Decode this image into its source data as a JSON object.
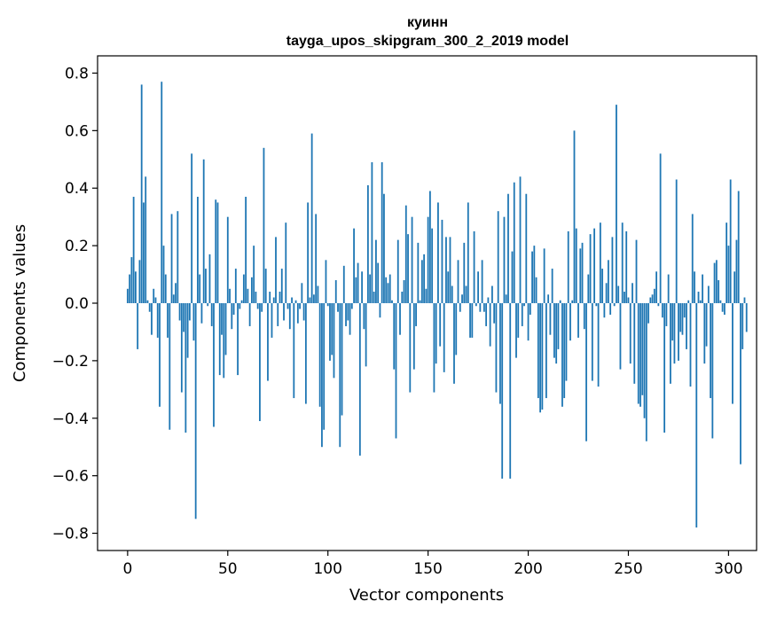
{
  "chart_data": {
    "type": "bar",
    "title_line1": "куинн",
    "title_line2": "tayga_upos_skipgram_300_2_2019 model",
    "xlabel": "Vector components",
    "ylabel": "Components values",
    "xlim": [
      -15,
      314
    ],
    "ylim": [
      -0.86,
      0.86
    ],
    "xticks": [
      0,
      50,
      100,
      150,
      200,
      250,
      300
    ],
    "yticks": [
      -0.8,
      -0.6,
      -0.4,
      -0.2,
      0.0,
      0.2,
      0.4,
      0.6,
      0.8
    ],
    "ytick_labels": [
      "−0.8",
      "−0.6",
      "−0.4",
      "−0.2",
      "0.0",
      "0.2",
      "0.4",
      "0.6",
      "0.8"
    ],
    "bar_color": "#1f77b4",
    "grid": false,
    "values": [
      0.05,
      0.1,
      0.16,
      0.37,
      0.11,
      -0.16,
      0.15,
      0.76,
      0.35,
      0.44,
      0.01,
      -0.03,
      -0.11,
      0.05,
      0.02,
      -0.12,
      -0.36,
      0.77,
      0.2,
      0.1,
      -0.12,
      -0.44,
      0.31,
      0.03,
      0.07,
      0.32,
      -0.06,
      -0.31,
      -0.1,
      -0.45,
      -0.19,
      -0.06,
      0.52,
      -0.13,
      -0.75,
      0.37,
      0.1,
      -0.07,
      0.5,
      0.12,
      -0.01,
      0.17,
      -0.08,
      -0.43,
      0.36,
      0.35,
      -0.25,
      -0.11,
      -0.26,
      -0.18,
      0.3,
      0.05,
      -0.09,
      -0.04,
      0.12,
      -0.25,
      -0.02,
      0.01,
      0.1,
      0.37,
      0.05,
      -0.08,
      0.09,
      0.2,
      0.04,
      -0.02,
      -0.41,
      -0.03,
      0.54,
      0.12,
      -0.27,
      0.04,
      -0.12,
      0.02,
      0.23,
      -0.08,
      0.04,
      0.12,
      -0.06,
      0.28,
      -0.02,
      -0.09,
      0.02,
      -0.33,
      0.01,
      -0.07,
      -0.02,
      0.07,
      -0.06,
      -0.35,
      0.35,
      0.02,
      0.59,
      0.03,
      0.31,
      0.06,
      -0.36,
      -0.5,
      -0.44,
      0.15,
      -0.01,
      -0.2,
      -0.18,
      -0.26,
      0.08,
      -0.03,
      -0.5,
      -0.39,
      0.13,
      -0.08,
      -0.06,
      -0.11,
      -0.02,
      0.26,
      0.09,
      0.14,
      -0.53,
      0.11,
      -0.09,
      -0.22,
      0.41,
      0.1,
      0.49,
      0.04,
      0.22,
      0.14,
      -0.05,
      0.49,
      0.38,
      0.09,
      0.07,
      0.1,
      0.01,
      -0.23,
      -0.47,
      0.22,
      -0.11,
      0.04,
      0.08,
      0.34,
      0.24,
      -0.31,
      0.3,
      -0.23,
      -0.08,
      0.21,
      0.01,
      0.15,
      0.17,
      0.05,
      0.3,
      0.39,
      0.26,
      -0.31,
      -0.21,
      0.35,
      -0.15,
      0.29,
      -0.24,
      0.23,
      0.11,
      0.23,
      0.06,
      -0.28,
      -0.18,
      0.15,
      -0.03,
      0.03,
      0.21,
      0.06,
      0.35,
      -0.12,
      -0.12,
      0.25,
      -0.01,
      0.11,
      -0.03,
      0.15,
      -0.03,
      -0.08,
      0.02,
      -0.15,
      0.06,
      -0.07,
      -0.31,
      0.32,
      -0.35,
      -0.61,
      0.3,
      0.03,
      0.38,
      -0.61,
      0.18,
      0.42,
      -0.19,
      -0.12,
      0.44,
      -0.08,
      -0.01,
      0.38,
      -0.13,
      -0.04,
      0.18,
      0.2,
      0.09,
      -0.33,
      -0.38,
      -0.37,
      0.19,
      -0.33,
      0.03,
      -0.11,
      0.12,
      -0.19,
      -0.21,
      -0.16,
      0.01,
      -0.36,
      -0.33,
      -0.27,
      0.25,
      -0.13,
      0.01,
      0.6,
      0.26,
      -0.12,
      0.19,
      0.21,
      -0.09,
      -0.48,
      0.1,
      0.24,
      -0.27,
      0.26,
      -0.01,
      -0.29,
      0.28,
      0.12,
      -0.05,
      0.07,
      0.15,
      -0.04,
      0.23,
      -0.01,
      0.69,
      0.06,
      -0.23,
      0.28,
      0.04,
      0.25,
      0.02,
      -0.21,
      0.07,
      -0.28,
      0.22,
      -0.35,
      -0.36,
      -0.32,
      -0.4,
      -0.48,
      -0.07,
      0.02,
      0.03,
      0.05,
      0.11,
      -0.01,
      0.52,
      -0.05,
      -0.45,
      -0.08,
      0.1,
      -0.28,
      -0.13,
      -0.21,
      0.43,
      -0.2,
      -0.1,
      -0.11,
      -0.05,
      -0.16,
      0.01,
      -0.29,
      0.31,
      0.11,
      -0.78,
      0.04,
      0.01,
      0.1,
      -0.21,
      -0.15,
      0.06,
      -0.33,
      -0.47,
      0.14,
      0.15,
      0.08,
      0.01,
      -0.03,
      -0.04,
      0.28,
      0.2,
      0.43,
      -0.35,
      0.11,
      0.22,
      0.39,
      -0.56,
      -0.16,
      0.02,
      -0.1
    ]
  }
}
